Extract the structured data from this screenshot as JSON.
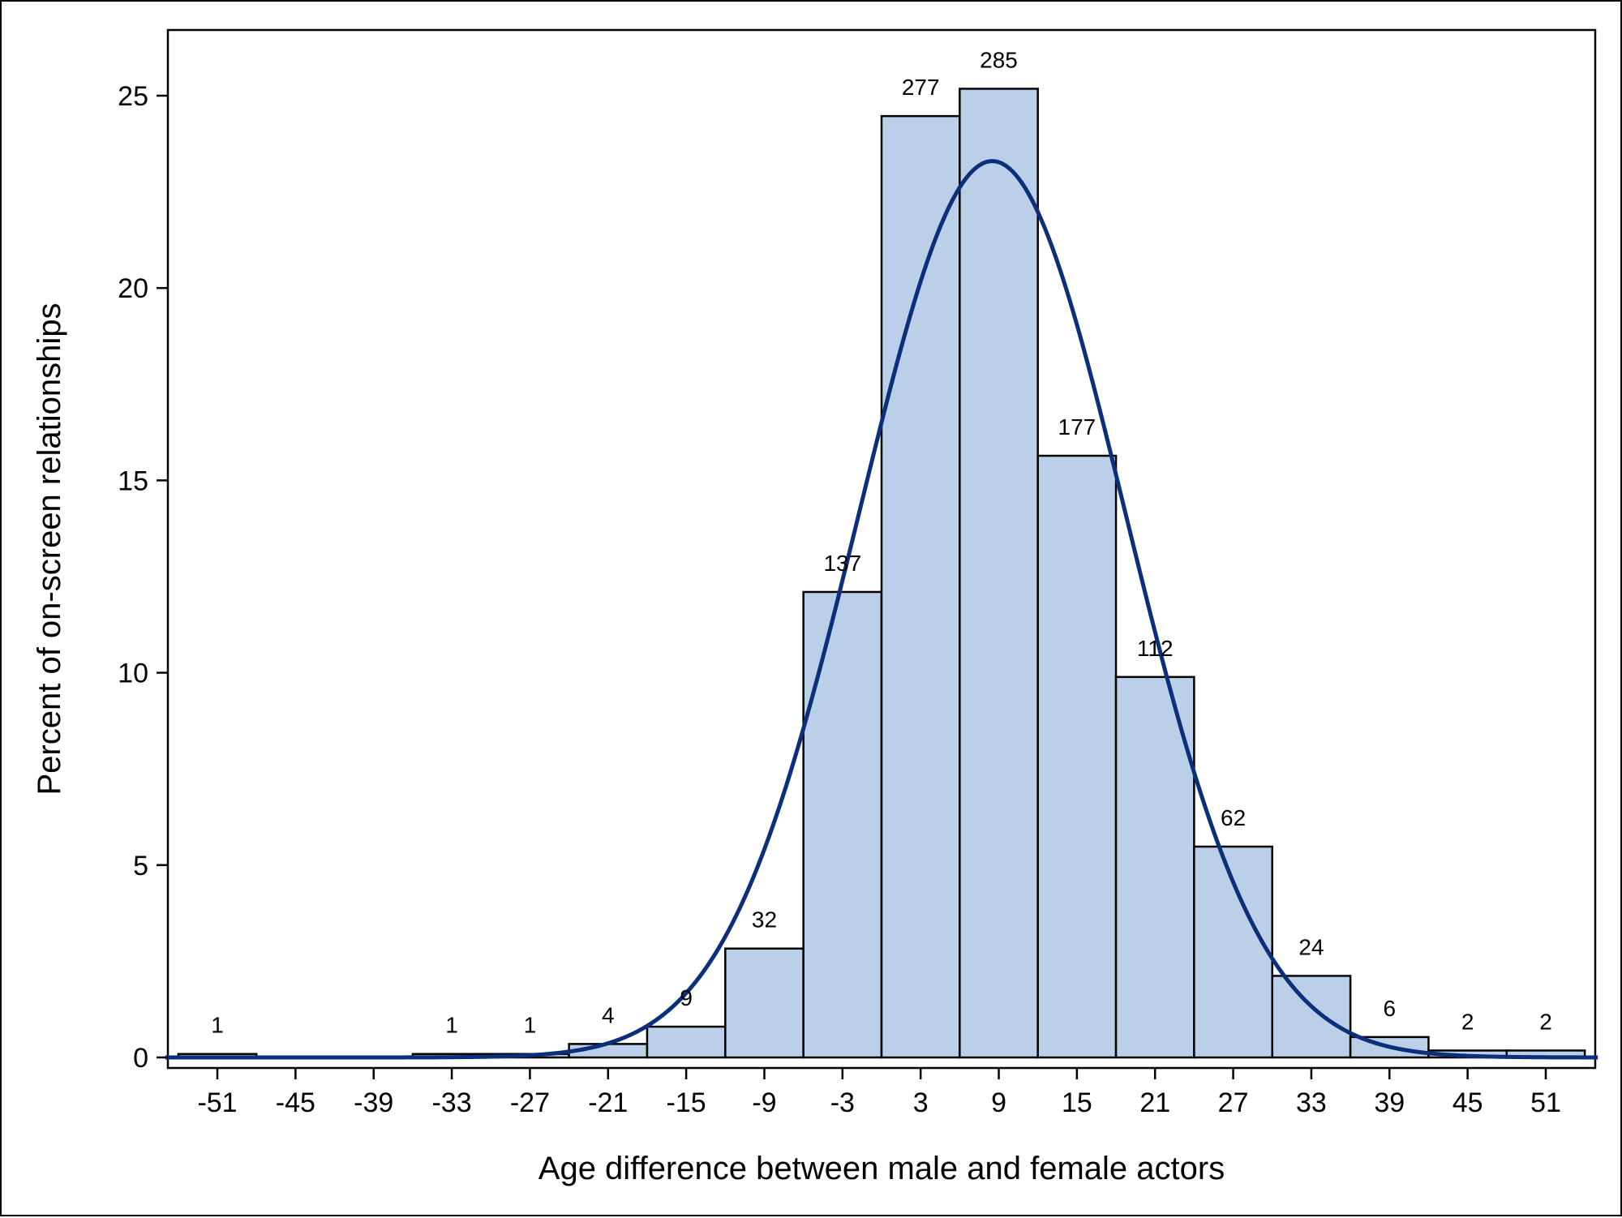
{
  "chart_data": {
    "type": "bar",
    "title": "",
    "xlabel": "Age difference between male and female actors",
    "ylabel": "Percent of on-screen relationships",
    "categories": [
      "-51",
      "-45",
      "-39",
      "-33",
      "-27",
      "-21",
      "-15",
      "-9",
      "-3",
      "3",
      "9",
      "15",
      "21",
      "27",
      "33",
      "39",
      "45",
      "51"
    ],
    "x": [
      -51,
      -45,
      -39,
      -33,
      -27,
      -21,
      -15,
      -9,
      -3,
      3,
      9,
      15,
      21,
      27,
      33,
      39,
      45,
      51
    ],
    "bin_width": 6,
    "values": [
      0.09,
      0,
      0,
      0.09,
      0.09,
      0.35,
      0.8,
      2.83,
      12.1,
      24.47,
      25.18,
      15.64,
      9.89,
      5.48,
      2.12,
      0.53,
      0.18,
      0.18
    ],
    "bar_labels": [
      "1",
      "",
      "",
      "1",
      "1",
      "4",
      "9",
      "32",
      "137",
      "277",
      "285",
      "177",
      "112",
      "62",
      "24",
      "6",
      "2",
      "2"
    ],
    "xlim": [
      -54.8,
      54.8
    ],
    "ylim": [
      0,
      26.7
    ],
    "yticks": [
      0,
      5,
      10,
      15,
      20,
      25
    ],
    "grid": false,
    "legend": "none",
    "overlay": {
      "type": "normal-curve",
      "mean": 8.5,
      "sd": 10.24,
      "peak": 23.3
    },
    "colors": {
      "bar_fill": "#bbd0e8",
      "bar_stroke": "#000000",
      "curve": "#0b2f78"
    }
  }
}
